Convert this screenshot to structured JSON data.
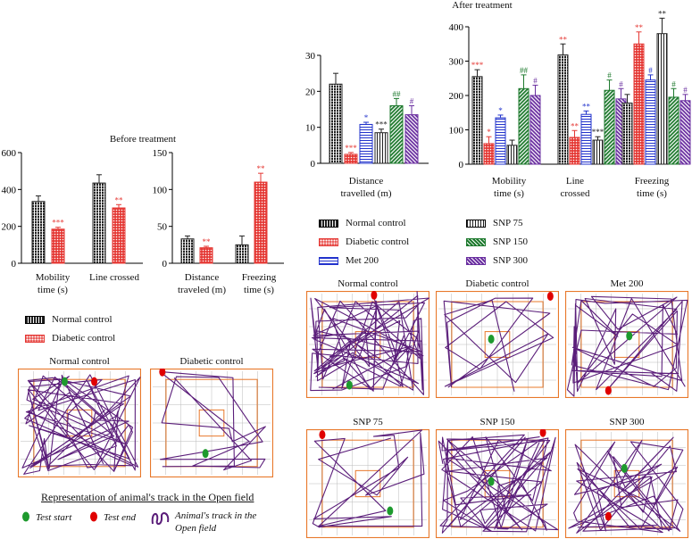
{
  "colors": {
    "normal": "#222222",
    "diabetic": "#e53935",
    "met": "#2233cc",
    "snp75": "#222222",
    "snp150": "#1e7a2e",
    "snp300": "#6a2fa0",
    "orange": "#e8782a",
    "track": "#5b1e7a"
  },
  "before": {
    "title": "Before treatment",
    "legend": [
      "Normal control",
      "Diabetic control"
    ],
    "chart_data": [
      {
        "type": "bar",
        "ylim": [
          0,
          600
        ],
        "yticks": [
          "0",
          "200",
          "400",
          "600"
        ],
        "categories": [
          "Mobility time (s)",
          "Line crossed"
        ],
        "cat_lines": [
          [
            "Mobility",
            "time (s)"
          ],
          [
            "Line crossed"
          ]
        ],
        "series": [
          {
            "name": "Normal control",
            "values": [
              335,
              435
            ],
            "err": [
              30,
              45
            ]
          },
          {
            "name": "Diabetic control",
            "values": [
              185,
              300
            ],
            "err": [
              10,
              18
            ]
          }
        ],
        "sig": [
          [
            "",
            ""
          ],
          [
            "***",
            "**"
          ]
        ]
      },
      {
        "type": "bar",
        "ylim": [
          0,
          150
        ],
        "yticks": [
          "0",
          "50",
          "100",
          "150"
        ],
        "categories": [
          "Distance traveled (m)",
          "Freezing time (s)"
        ],
        "cat_lines": [
          [
            "Distance",
            "traveled (m)"
          ],
          [
            "Freezing",
            "time (s)"
          ]
        ],
        "series": [
          {
            "name": "Normal control",
            "values": [
              33,
              25
            ],
            "err": [
              4,
              12
            ]
          },
          {
            "name": "Diabetic control",
            "values": [
              21,
              110
            ],
            "err": [
              2,
              12
            ]
          }
        ],
        "sig": [
          [
            "",
            ""
          ],
          [
            "**",
            "**"
          ]
        ]
      }
    ]
  },
  "after": {
    "title": "After treatment",
    "legend": [
      "Normal control",
      "Diabetic control",
      "Met 200",
      "SNP 75",
      "SNP 150",
      "SNP 300"
    ],
    "chart_data": [
      {
        "type": "bar",
        "ylim": [
          0,
          30
        ],
        "yticks": [
          "0",
          "10",
          "20",
          "30"
        ],
        "categories": [
          "Distance travelled (m)"
        ],
        "cat_lines": [
          [
            "Distance",
            "travelled (m)"
          ]
        ],
        "series": [
          {
            "name": "Normal control",
            "values": [
              22
            ],
            "err": [
              3
            ]
          },
          {
            "name": "Diabetic control",
            "values": [
              2.5
            ],
            "err": [
              0.5
            ]
          },
          {
            "name": "Met 200",
            "values": [
              10.8
            ],
            "err": [
              0.6
            ]
          },
          {
            "name": "SNP 75",
            "values": [
              8.5
            ],
            "err": [
              1
            ]
          },
          {
            "name": "SNP 150",
            "values": [
              16
            ],
            "err": [
              2
            ]
          },
          {
            "name": "SNP 300",
            "values": [
              13.5
            ],
            "err": [
              2.5
            ]
          }
        ],
        "sig": [
          [
            "",
            "***",
            "*",
            "***",
            "##",
            "#"
          ]
        ]
      },
      {
        "type": "bar",
        "ylim": [
          0,
          400
        ],
        "yticks": [
          "0",
          "100",
          "200",
          "300",
          "400"
        ],
        "categories": [
          "Mobility time (s)",
          "Line crossed",
          "Freezing time (s)"
        ],
        "cat_lines": [
          [
            "Mobility",
            "time (s)"
          ],
          [
            "Line",
            "crossed"
          ],
          [
            "Freezing",
            "time (s)"
          ]
        ],
        "series": [
          {
            "name": "Normal control",
            "values": [
              255,
              318,
              178
            ],
            "err": [
              20,
              32,
              25
            ]
          },
          {
            "name": "Diabetic control",
            "values": [
              60,
              78,
              350
            ],
            "err": [
              20,
              20,
              35
            ]
          },
          {
            "name": "Met 200",
            "values": [
              135,
              145,
              245
            ],
            "err": [
              8,
              10,
              15
            ]
          },
          {
            "name": "SNP 75",
            "values": [
              55,
              70,
              380
            ],
            "err": [
              15,
              10,
              45
            ]
          },
          {
            "name": "SNP 150",
            "values": [
              220,
              215,
              195
            ],
            "err": [
              40,
              30,
              25
            ]
          },
          {
            "name": "SNP 300",
            "values": [
              200,
              190,
              185
            ],
            "err": [
              30,
              30,
              18
            ]
          }
        ],
        "sig": [
          [
            "***",
            "*",
            "*",
            "",
            "##",
            "#"
          ],
          [
            "**",
            "**",
            "**",
            "***",
            "#",
            "#"
          ],
          [
            "",
            "**",
            "#",
            "**",
            "#",
            "#"
          ]
        ]
      }
    ]
  },
  "tracks_left": {
    "panels": [
      "Normal control",
      "Diabetic control"
    ]
  },
  "tracks_right": {
    "panels": [
      "Normal control",
      "Diabetic control",
      "Met 200",
      "SNP 75",
      "SNP 150",
      "SNP 300"
    ]
  },
  "key": {
    "title": "Representation of animal's track in the Open field",
    "start": "Test start",
    "end": "Test end",
    "track_line1": "Animal's track in the",
    "track_line2": "Open field"
  }
}
